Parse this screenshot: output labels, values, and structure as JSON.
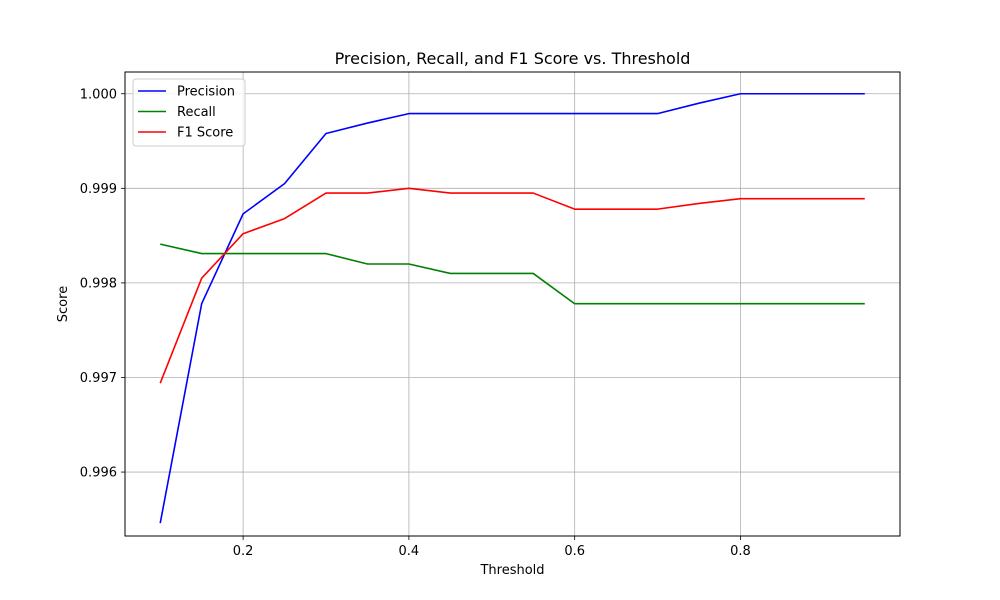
{
  "chart_data": {
    "type": "line",
    "title": "Precision, Recall, and F1 Score vs. Threshold",
    "xlabel": "Threshold",
    "ylabel": "Score",
    "xlim": [
      0.0575,
      0.9925
    ],
    "ylim": [
      0.995324,
      1.00023
    ],
    "xticks": [
      0.2,
      0.4,
      0.6,
      0.8
    ],
    "xtick_labels": [
      "0.2",
      "0.4",
      "0.6",
      "0.8"
    ],
    "yticks": [
      0.996,
      0.997,
      0.998,
      0.999,
      1.0
    ],
    "ytick_labels": [
      "0.996",
      "0.997",
      "0.998",
      "0.999",
      "1.000"
    ],
    "grid": true,
    "legend_position": "top-left",
    "x": [
      0.1,
      0.15,
      0.2,
      0.25,
      0.3,
      0.35,
      0.4,
      0.45,
      0.5,
      0.55,
      0.6,
      0.65,
      0.7,
      0.75,
      0.8,
      0.85,
      0.9,
      0.95
    ],
    "series": [
      {
        "name": "Precision",
        "color": "#0000ff",
        "values": [
          0.99546,
          0.99778,
          0.99873,
          0.99905,
          0.99958,
          0.99969,
          0.99979,
          0.99979,
          0.99979,
          0.99979,
          0.99979,
          0.99979,
          0.99979,
          0.9999,
          1.0,
          1.0,
          1.0,
          1.0
        ]
      },
      {
        "name": "Recall",
        "color": "#008000",
        "values": [
          0.99841,
          0.99831,
          0.99831,
          0.99831,
          0.99831,
          0.9982,
          0.9982,
          0.9981,
          0.9981,
          0.9981,
          0.99778,
          0.99778,
          0.99778,
          0.99778,
          0.99778,
          0.99778,
          0.99778,
          0.99778
        ]
      },
      {
        "name": "F1 Score",
        "color": "#ff0000",
        "values": [
          0.99694,
          0.99805,
          0.99852,
          0.99868,
          0.99895,
          0.99895,
          0.999,
          0.99895,
          0.99895,
          0.99895,
          0.99878,
          0.99878,
          0.99878,
          0.99884,
          0.99889,
          0.99889,
          0.99889,
          0.99889
        ]
      }
    ]
  }
}
